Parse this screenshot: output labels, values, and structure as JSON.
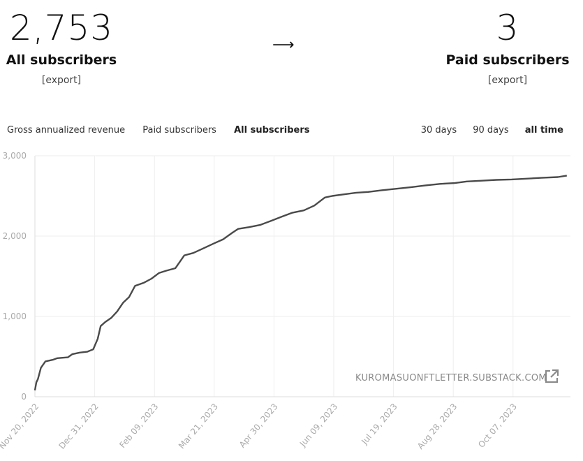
{
  "summary": {
    "all_subscribers_count": "2,753",
    "all_subscribers_label": "All subscribers",
    "paid_subscribers_count": "3",
    "paid_subscribers_label": "Paid subscribers",
    "export_label": "[export]",
    "arrow": "⟶"
  },
  "metric_tabs": [
    "Gross annualized revenue",
    "Paid subscribers",
    "All subscribers"
  ],
  "active_metric": "All subscribers",
  "range_tabs": [
    "30 days",
    "90 days",
    "all time"
  ],
  "active_range": "all time",
  "watermark": "KUROMASUONFTLETTER.SUBSTACK.COM",
  "icons": {
    "external_link": "external-link-icon"
  },
  "colors": {
    "line": "#4a4a4a",
    "grid": "#eeeeee",
    "axis_text": "#aaaaaa"
  },
  "chart_data": {
    "type": "line",
    "title": "",
    "xlabel": "",
    "ylabel": "",
    "x_ticks": [
      "Nov 20, 2022",
      "Dec 31, 2022",
      "Feb 09, 2023",
      "Mar 21, 2023",
      "Apr 30, 2023",
      "Jun 09, 2023",
      "Jul 19, 2023",
      "Aug 28, 2023",
      "Oct 07, 2023"
    ],
    "y_ticks": [
      "0",
      "1,000",
      "2,000",
      "3,000"
    ],
    "ylim": [
      0,
      3000
    ],
    "grid": true,
    "series": [
      {
        "values": [
          [
            "2022-11-20",
            80
          ],
          [
            "2022-11-21",
            180
          ],
          [
            "2022-11-22",
            220
          ],
          [
            "2022-11-24",
            360
          ],
          [
            "2022-11-27",
            440
          ],
          [
            "2022-12-02",
            460
          ],
          [
            "2022-12-05",
            480
          ],
          [
            "2022-12-12",
            490
          ],
          [
            "2022-12-15",
            530
          ],
          [
            "2022-12-20",
            550
          ],
          [
            "2022-12-25",
            560
          ],
          [
            "2022-12-29",
            590
          ],
          [
            "2023-01-01",
            720
          ],
          [
            "2023-01-03",
            880
          ],
          [
            "2023-01-06",
            930
          ],
          [
            "2023-01-10",
            980
          ],
          [
            "2023-01-14",
            1060
          ],
          [
            "2023-01-18",
            1170
          ],
          [
            "2023-01-22",
            1240
          ],
          [
            "2023-01-26",
            1380
          ],
          [
            "2023-02-01",
            1420
          ],
          [
            "2023-02-06",
            1470
          ],
          [
            "2023-02-11",
            1540
          ],
          [
            "2023-02-16",
            1570
          ],
          [
            "2023-02-22",
            1600
          ],
          [
            "2023-02-28",
            1760
          ],
          [
            "2023-03-06",
            1790
          ],
          [
            "2023-03-13",
            1850
          ],
          [
            "2023-03-20",
            1910
          ],
          [
            "2023-03-26",
            1960
          ],
          [
            "2023-04-01",
            2040
          ],
          [
            "2023-04-05",
            2090
          ],
          [
            "2023-04-12",
            2110
          ],
          [
            "2023-04-20",
            2140
          ],
          [
            "2023-04-27",
            2190
          ],
          [
            "2023-05-04",
            2240
          ],
          [
            "2023-05-11",
            2290
          ],
          [
            "2023-05-19",
            2320
          ],
          [
            "2023-05-26",
            2380
          ],
          [
            "2023-06-02",
            2480
          ],
          [
            "2023-06-07",
            2500
          ],
          [
            "2023-06-15",
            2520
          ],
          [
            "2023-06-23",
            2540
          ],
          [
            "2023-07-01",
            2550
          ],
          [
            "2023-07-10",
            2570
          ],
          [
            "2023-07-20",
            2590
          ],
          [
            "2023-07-30",
            2610
          ],
          [
            "2023-08-08",
            2630
          ],
          [
            "2023-08-18",
            2650
          ],
          [
            "2023-08-28",
            2660
          ],
          [
            "2023-09-05",
            2680
          ],
          [
            "2023-09-15",
            2690
          ],
          [
            "2023-09-25",
            2700
          ],
          [
            "2023-10-05",
            2705
          ],
          [
            "2023-10-15",
            2715
          ],
          [
            "2023-10-25",
            2725
          ],
          [
            "2023-11-05",
            2735
          ],
          [
            "2023-11-11",
            2753
          ]
        ]
      }
    ]
  }
}
